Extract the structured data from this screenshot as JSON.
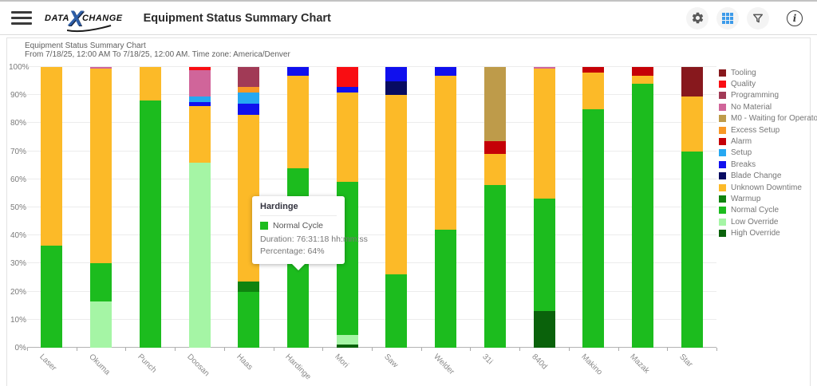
{
  "header": {
    "logo": {
      "part1": "DATA",
      "x": "X",
      "part2": "CHANGE"
    },
    "title": "Equipment Status Summary Chart"
  },
  "subheader": {
    "line1": "Equipment Status Summary Chart",
    "line2": "From 7/18/25, 12:00 AM To 7/18/25, 12:00 AM. Time zone: America/Denver"
  },
  "colors": {
    "accent_blue": "#3D9BE9",
    "logo_blue": "#2E5FA8"
  },
  "tooltip": {
    "title": "Hardinge",
    "series": "Normal Cycle",
    "swatch_color": "#1CBC1E",
    "duration": "Duration: 76:31:18 hh:mm:ss",
    "percentage": "Percentage: 64%"
  },
  "chart_data": {
    "type": "bar",
    "stacked": true,
    "grid": true,
    "legend_position": "right",
    "ylim": [
      0,
      100
    ],
    "y_ticks": [
      "0%",
      "10%",
      "20%",
      "30%",
      "40%",
      "50%",
      "60%",
      "70%",
      "80%",
      "90%",
      "100%"
    ],
    "categories": [
      "Laser",
      "Okuma",
      "Punch",
      "Doosan",
      "Haas",
      "Hardinge",
      "Mori",
      "Saw",
      "Welder",
      "31i",
      "840d",
      "Makino",
      "Mazak",
      "Star"
    ],
    "highlight": {
      "category": "Hardinge",
      "series": "Normal Cycle"
    },
    "series": [
      {
        "name": "High Override",
        "color": "#0A620B",
        "values": [
          0,
          0,
          0,
          0,
          0,
          0,
          1,
          0,
          0,
          0,
          13,
          0,
          0,
          0
        ]
      },
      {
        "name": "Low Override",
        "color": "#A5F5A5",
        "values": [
          0,
          16.5,
          0,
          66,
          0,
          0,
          3.5,
          0,
          0,
          0,
          0,
          0,
          0,
          0
        ]
      },
      {
        "name": "Normal Cycle",
        "color": "#1CBC1E",
        "values": [
          36.5,
          13.5,
          88,
          0,
          20,
          64,
          54.5,
          26,
          42,
          58,
          40,
          85,
          94,
          70
        ]
      },
      {
        "name": "Warmup",
        "color": "#0F830F",
        "values": [
          0,
          0,
          0,
          0,
          3.5,
          0,
          0,
          0,
          0,
          0,
          0,
          0,
          0,
          0
        ]
      },
      {
        "name": "Unknown Downtime",
        "color": "#FCBA28",
        "values": [
          63.5,
          69.5,
          12,
          20,
          59.5,
          33,
          32,
          64,
          55,
          11,
          46.5,
          13,
          3,
          19.5
        ]
      },
      {
        "name": "Blade Change",
        "color": "#070B61",
        "values": [
          0,
          0,
          0,
          0,
          0,
          0,
          0,
          5,
          0,
          0,
          0,
          0,
          0,
          0
        ]
      },
      {
        "name": "Breaks",
        "color": "#1010EE",
        "values": [
          0,
          0,
          0,
          1.5,
          4,
          3,
          2,
          5,
          3,
          0,
          0,
          0,
          0,
          0
        ]
      },
      {
        "name": "Setup",
        "color": "#26A8F2",
        "values": [
          0,
          0,
          0,
          2,
          4,
          0,
          0,
          0,
          0,
          0,
          0,
          0,
          0,
          0
        ]
      },
      {
        "name": "Alarm",
        "color": "#C50007",
        "values": [
          0,
          0,
          0,
          0,
          0,
          0,
          0,
          0,
          0,
          4.5,
          0,
          2,
          3,
          0
        ]
      },
      {
        "name": "Excess Setup",
        "color": "#F89826",
        "values": [
          0,
          0,
          0,
          0,
          2,
          0,
          0,
          0,
          0,
          0,
          0,
          0,
          0,
          0
        ]
      },
      {
        "name": "M0 - Waiting for Operator",
        "color": "#BE9B4A",
        "values": [
          0,
          0,
          0,
          0,
          0,
          0,
          0,
          0,
          0,
          26.5,
          0,
          0,
          0,
          0
        ]
      },
      {
        "name": "No Material",
        "color": "#D0659A",
        "values": [
          0,
          0.5,
          0,
          9.5,
          0,
          0,
          0,
          0,
          0,
          0,
          0.5,
          0,
          0,
          0
        ]
      },
      {
        "name": "Programming",
        "color": "#A13A56",
        "values": [
          0,
          0,
          0,
          0,
          7,
          0,
          0,
          0,
          0,
          0,
          0,
          0,
          0,
          0
        ]
      },
      {
        "name": "Quality",
        "color": "#F90D12",
        "values": [
          0,
          0,
          0,
          1,
          0,
          0,
          7,
          0,
          0,
          0,
          0,
          0,
          0,
          0
        ]
      },
      {
        "name": "Tooling",
        "color": "#87181D",
        "values": [
          0,
          0,
          0,
          0,
          0,
          0,
          0,
          0,
          0,
          0,
          0,
          0,
          0,
          10.5
        ]
      }
    ]
  }
}
